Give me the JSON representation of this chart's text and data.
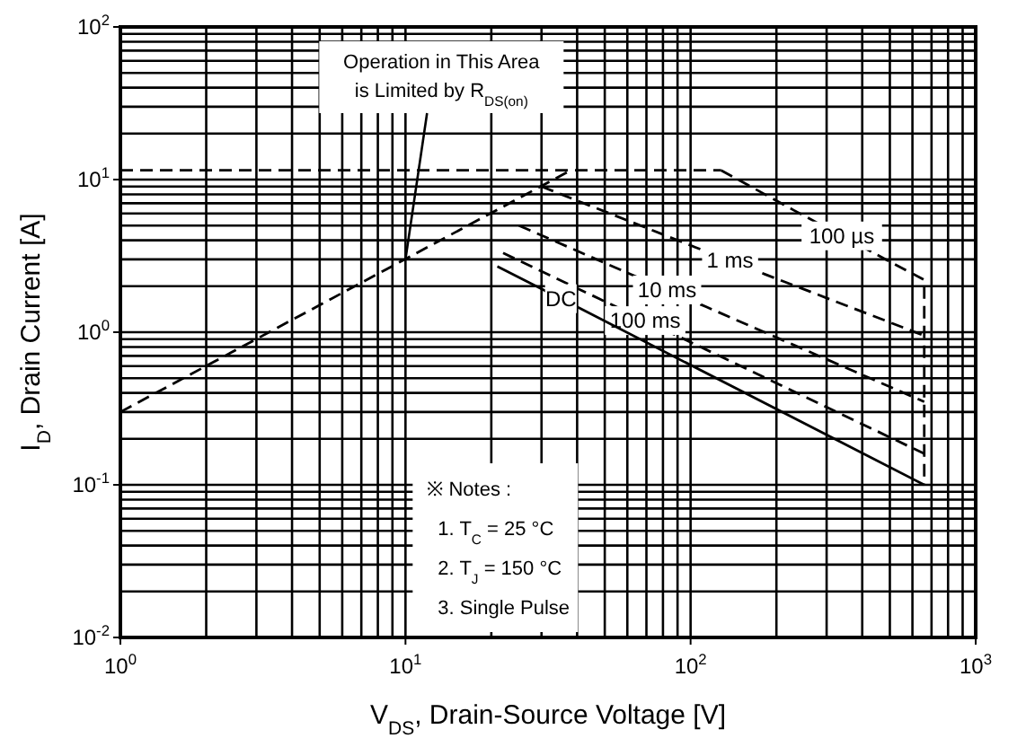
{
  "chart_data": {
    "type": "line",
    "xlabel": "V$_{DS}$, Drain-Source Voltage [V]",
    "ylabel": "I$_{D}$, Drain Current [A]",
    "log": "xy",
    "grid": true,
    "xlim": [
      1,
      1000
    ],
    "ylim": [
      0.01,
      100
    ],
    "xticks": [
      {
        "value": 1,
        "label": "10$^{0}$"
      },
      {
        "value": 10,
        "label": "10$^{1}$"
      },
      {
        "value": 100,
        "label": "10$^{2}$"
      },
      {
        "value": 1000,
        "label": "10$^{3}$"
      }
    ],
    "yticks": [
      {
        "value": 0.01,
        "label": "10$^{-2}$"
      },
      {
        "value": 0.1,
        "label": "10$^{-1}$"
      },
      {
        "value": 1,
        "label": "10$^{0}$"
      },
      {
        "value": 10,
        "label": "10$^{1}$"
      },
      {
        "value": 100,
        "label": "10$^{2}$"
      }
    ],
    "series": [
      {
        "color": "#000000",
        "line_style": "dashed",
        "x": [
          1,
          128
        ],
        "values": [
          11.5,
          11.5
        ]
      },
      {
        "color": "#000000",
        "line_style": "dashed",
        "x": [
          1,
          38
        ],
        "values": [
          0.3,
          11.5
        ]
      },
      {
        "name": "100 µs",
        "color": "#000000",
        "line_style": "dashed",
        "x": [
          128,
          230,
          500,
          660,
          660
        ],
        "values": [
          11.5,
          6.3,
          2.9,
          2.2,
          0.1
        ]
      },
      {
        "name": "1 ms",
        "color": "#000000",
        "line_style": "dashed",
        "x": [
          30,
          104,
          182,
          660
        ],
        "values": [
          9,
          3.6,
          2.4,
          0.95
        ]
      },
      {
        "name": "10 ms",
        "color": "#000000",
        "line_style": "dashed",
        "x": [
          25,
          60,
          114,
          660
        ],
        "values": [
          5,
          2.45,
          1.46,
          0.35
        ]
      },
      {
        "name": "100 ms",
        "color": "#000000",
        "line_style": "dashed",
        "x": [
          22,
          48,
          100,
          660
        ],
        "values": [
          3.3,
          1.65,
          0.86,
          0.16
        ]
      },
      {
        "name": "DC",
        "color": "#000000",
        "line_style": "solid",
        "x": [
          21,
          30,
          41,
          660
        ],
        "values": [
          2.7,
          1.92,
          1.43,
          0.1
        ]
      }
    ],
    "annotations": [
      {
        "text": "Operation in This Area\nis Limited by R$_{DS(on)}$",
        "x": 10,
        "y": 3
      },
      "※ Notes :",
      "1. T$_{C}$ = 25 °C",
      "2. T$_{J}$ = 150 °C",
      "3. Single Pulse"
    ]
  }
}
